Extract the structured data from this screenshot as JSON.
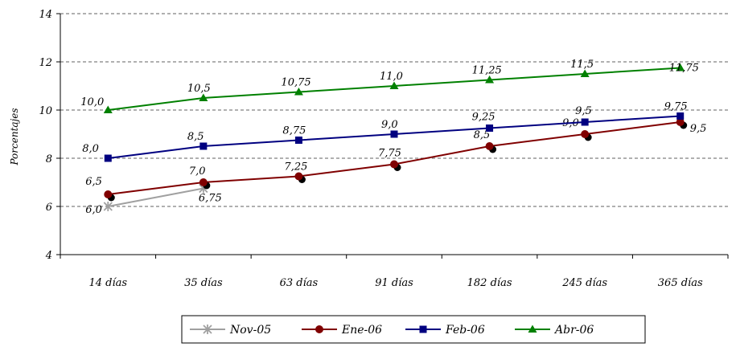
{
  "chart_data": {
    "type": "line",
    "ylabel": "Porcentajes",
    "xlabel": "",
    "ylim": [
      4,
      14
    ],
    "yticks": [
      "4",
      "6",
      "8",
      "10",
      "12",
      "14"
    ],
    "grid": "horizontal-dashed",
    "legend_position": "bottom",
    "categories": [
      "14 días",
      "35 días",
      "63 días",
      "91 días",
      "182 días",
      "245 días",
      "365 días"
    ],
    "series": [
      {
        "name": "Nov-05",
        "color": "#A0A0A0",
        "marker": "star",
        "values": [
          6.0,
          6.75,
          null,
          null,
          null,
          null,
          null
        ],
        "labels": [
          "6,0",
          "6,75",
          "",
          "",
          "",
          "",
          ""
        ]
      },
      {
        "name": "Ene-06",
        "color": "#800000",
        "marker": "circle",
        "values": [
          6.5,
          7.0,
          7.25,
          7.75,
          8.5,
          9.0,
          9.5
        ],
        "labels": [
          "6,5",
          "7,0",
          "7,25",
          "7,75",
          "8,5",
          "9,0",
          "9,5"
        ]
      },
      {
        "name": "Feb-06",
        "color": "#000080",
        "marker": "square",
        "values": [
          8.0,
          8.5,
          8.75,
          9.0,
          9.25,
          9.5,
          9.75
        ],
        "labels": [
          "8,0",
          "8,5",
          "8,75",
          "9,0",
          "9,25",
          "9,5",
          "9,75"
        ]
      },
      {
        "name": "Abr-06",
        "color": "#008000",
        "marker": "triangle",
        "values": [
          10.0,
          10.5,
          10.75,
          11.0,
          11.25,
          11.5,
          11.75
        ],
        "labels": [
          "10,0",
          "10,5",
          "10,75",
          "11,0",
          "11,25",
          "11,5",
          "11,75"
        ]
      }
    ]
  }
}
